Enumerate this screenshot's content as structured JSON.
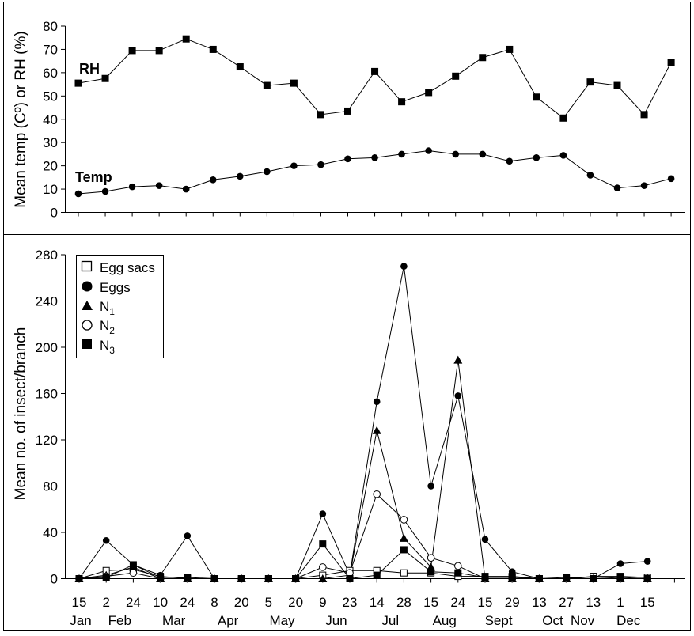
{
  "chart_data": [
    {
      "type": "line",
      "ylabel": "Mean temp (Cº) or RH (%)",
      "ylim": [
        0,
        80
      ],
      "yticks": [
        0,
        10,
        20,
        30,
        40,
        50,
        60,
        70,
        80
      ],
      "grid": false,
      "series_labels": [
        {
          "text": "RH",
          "series": "RH"
        },
        {
          "text": "Temp",
          "series": "Temp"
        }
      ],
      "series": [
        {
          "name": "RH",
          "marker": "square-filled",
          "values": [
            55.5,
            57.5,
            69.5,
            69.5,
            74.5,
            70,
            62.5,
            54.5,
            55.5,
            42,
            43.5,
            60.5,
            47.5,
            51.5,
            58.5,
            66.5,
            70,
            49.5,
            40.5,
            56,
            54.5,
            42,
            64.5
          ]
        },
        {
          "name": "Temp",
          "marker": "circle-filled",
          "values": [
            8,
            9,
            11,
            11.5,
            10,
            14,
            15.5,
            17.5,
            20,
            20.5,
            23,
            23.5,
            25,
            26.5,
            25,
            25,
            22,
            23.5,
            24.5,
            16,
            10.5,
            11.5,
            14.5
          ]
        }
      ]
    },
    {
      "type": "line",
      "ylabel": "Mean no. of insect/branch",
      "ylim": [
        0,
        280
      ],
      "yticks": [
        0,
        40,
        80,
        120,
        160,
        200,
        240,
        280
      ],
      "grid": false,
      "legend_position": "top-left",
      "x_tick_labels": [
        "15",
        "2",
        "24",
        "10",
        "24",
        "8",
        "20",
        "5",
        "20",
        "9",
        "23",
        "14",
        "28",
        "15",
        "24",
        "15",
        "29",
        "13",
        "27",
        "13",
        "1",
        "15"
      ],
      "month_labels": [
        "Jan",
        "Feb",
        "Mar",
        "Apr",
        "May",
        "Jun",
        "Jul",
        "Aug",
        "Sept",
        "Oct",
        "Nov",
        "Dec"
      ],
      "legend": [
        {
          "label": "Egg sacs",
          "base": "Egg sacs",
          "sub": "",
          "marker": "square-open"
        },
        {
          "label": "Eggs",
          "base": "Eggs",
          "sub": "",
          "marker": "circle-filled"
        },
        {
          "label": "N1",
          "base": "N",
          "sub": "1",
          "marker": "triangle-filled"
        },
        {
          "label": "N2",
          "base": "N",
          "sub": "2",
          "marker": "circle-open"
        },
        {
          "label": "N3",
          "base": "N",
          "sub": "3",
          "marker": "square-filled"
        }
      ],
      "series": [
        {
          "name": "Egg sacs",
          "marker": "square-open",
          "values": [
            0,
            7,
            8,
            2,
            0,
            0,
            0,
            0,
            0,
            3,
            7,
            7,
            5,
            5,
            2,
            2,
            2,
            0,
            0,
            2,
            2,
            1
          ]
        },
        {
          "name": "Eggs",
          "marker": "circle-filled",
          "values": [
            0,
            33,
            12,
            3,
            37,
            0,
            0,
            0,
            0,
            56,
            3,
            153,
            270,
            80,
            158,
            34,
            6,
            0,
            0,
            0,
            13,
            15
          ]
        },
        {
          "name": "N1",
          "marker": "triangle-filled",
          "values": [
            0,
            3,
            10,
            0,
            0,
            0,
            0,
            0,
            0,
            0,
            3,
            128,
            35,
            10,
            189,
            0,
            0,
            0,
            0,
            0,
            0,
            0
          ]
        },
        {
          "name": "N2",
          "marker": "circle-open",
          "values": [
            0,
            2,
            5,
            0,
            0,
            0,
            0,
            0,
            0,
            10,
            5,
            73,
            51,
            18,
            11,
            0,
            0,
            0,
            0,
            0,
            0,
            0
          ]
        },
        {
          "name": "N3",
          "marker": "square-filled",
          "values": [
            0,
            1,
            12,
            1,
            1,
            0,
            0,
            0,
            0,
            30,
            0,
            3,
            25,
            6,
            5,
            1,
            1,
            0,
            1,
            0,
            1,
            0
          ]
        }
      ]
    }
  ]
}
